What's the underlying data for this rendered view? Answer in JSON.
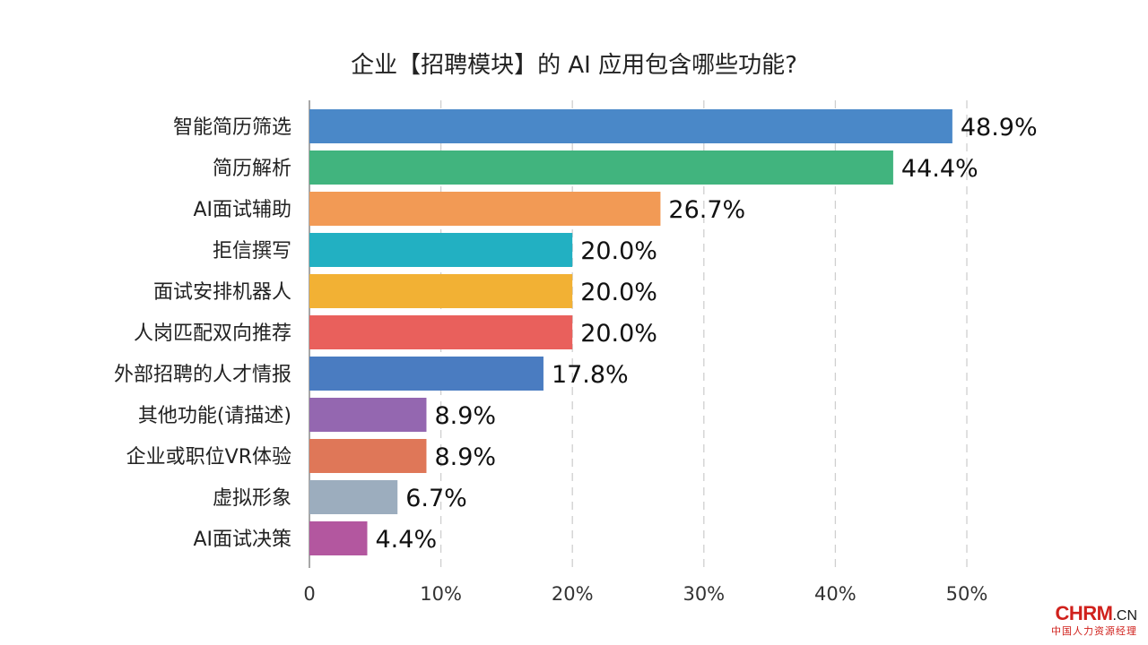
{
  "chart_data": {
    "type": "bar",
    "orientation": "horizontal",
    "title": "企业【招聘模块】的 AI 应用包含哪些功能?",
    "categories": [
      "智能简历筛选",
      "简历解析",
      "AI面试辅助",
      "拒信撰写",
      "面试安排机器人",
      "人岗匹配双向推荐",
      "外部招聘的人才情报",
      "其他功能(请描述)",
      "企业或职位VR体验",
      "虚拟形象",
      "AI面试决策"
    ],
    "values": [
      48.9,
      44.4,
      26.7,
      20.0,
      20.0,
      20.0,
      17.8,
      8.9,
      8.9,
      6.7,
      4.4
    ],
    "value_labels": [
      "48.9%",
      "44.4%",
      "26.7%",
      "20.0%",
      "20.0%",
      "20.0%",
      "17.8%",
      "8.9%",
      "8.9%",
      "6.7%",
      "4.4%"
    ],
    "colors": [
      "#4a88c8",
      "#41b47e",
      "#f29a55",
      "#22b0c2",
      "#f2b134",
      "#e9605c",
      "#4a7cc1",
      "#9467b0",
      "#df7758",
      "#9cadbe",
      "#b3579f"
    ],
    "xlim": [
      0,
      50
    ],
    "xticks": [
      0,
      10,
      20,
      30,
      40,
      50
    ],
    "xtick_labels": [
      "0",
      "10%",
      "20%",
      "30%",
      "40%",
      "50%"
    ],
    "grid": "vertical-dashed",
    "xlabel": "",
    "ylabel": ""
  },
  "watermark": {
    "brand": "CHRM",
    "tld": ".CN",
    "tagline": "中国人力资源经理"
  }
}
